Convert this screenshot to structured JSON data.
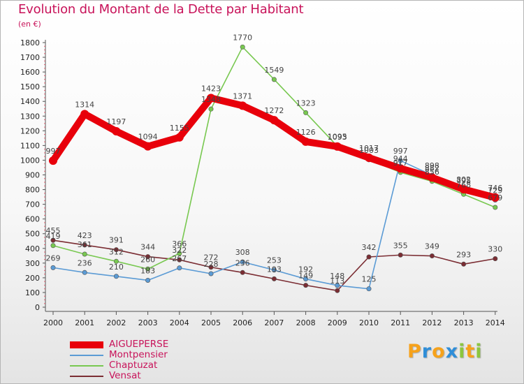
{
  "title": "Evolution du Montant de la Dette par Habitant",
  "unit": "(en €)",
  "logo": {
    "letters": [
      "P",
      "r",
      "o",
      "x",
      "i",
      "t",
      "i"
    ],
    "colors": [
      "#f6a21b",
      "#2f8ed8",
      "#f6a21b",
      "#2f8ed8",
      "#8cc63f",
      "#f6a21b",
      "#8cc63f"
    ]
  },
  "chart_data": {
    "type": "line",
    "x": [
      "2000",
      "2001",
      "2002",
      "2003",
      "2004",
      "2005",
      "2006",
      "2007",
      "2008",
      "2009",
      "2010",
      "2011",
      "2012",
      "2013",
      "2014"
    ],
    "ylim": [
      0,
      1800
    ],
    "yticks": [
      "0",
      "100",
      "200",
      "300",
      "400",
      "500",
      "600",
      "700",
      "800",
      "900",
      "1000",
      "1100",
      "1200",
      "1300",
      "1400",
      "1500",
      "1600",
      "1700",
      "1800"
    ],
    "grid": false,
    "legend_position": "bottom-left",
    "series": [
      {
        "name": "AIGUEPERSE",
        "color": "#e8000b",
        "values": [
          997,
          1314,
          1197,
          1094,
          1155,
          1423,
          1371,
          1272,
          1126,
          1093,
          1017,
          944,
          882,
          802,
          746
        ],
        "labels": [
          "997",
          "1314",
          "1197",
          "1094",
          "1155",
          "1423",
          "1371",
          "1272",
          "1126",
          "1093",
          "1017",
          "944",
          "882",
          "802",
          "746"
        ]
      },
      {
        "name": "Montpensier",
        "color": "#5b9bd5",
        "values": [
          269,
          236,
          210,
          183,
          267,
          228,
          308,
          253,
          192,
          148,
          125,
          997,
          898,
          795,
          729
        ],
        "labels": [
          "269",
          "236",
          "210",
          "183",
          "267",
          "228",
          "308",
          "253",
          "192",
          "148",
          "125",
          "997",
          "898",
          "795",
          "729"
        ]
      },
      {
        "name": "Chaptuzat",
        "color": "#78c850",
        "values": [
          419,
          361,
          312,
          260,
          366,
          1348,
          1770,
          1549,
          1323,
          1095,
          1003,
          917,
          856,
          768,
          679
        ],
        "labels": [
          "419",
          "361",
          "312",
          "260",
          "366",
          "1348",
          "1770",
          "1549",
          "1323",
          "1095",
          "1003",
          "917",
          "856",
          "768",
          "679"
        ]
      },
      {
        "name": "Vensat",
        "color": "#7b2d33",
        "values": [
          455,
          423,
          391,
          344,
          322,
          272,
          236,
          193,
          149,
          113,
          342,
          355,
          349,
          293,
          330
        ],
        "labels": [
          "455",
          "423",
          "391",
          "344",
          "322",
          "272",
          "236",
          "193",
          "149",
          "113",
          "342",
          "355",
          "349",
          "293",
          "330"
        ]
      }
    ]
  }
}
